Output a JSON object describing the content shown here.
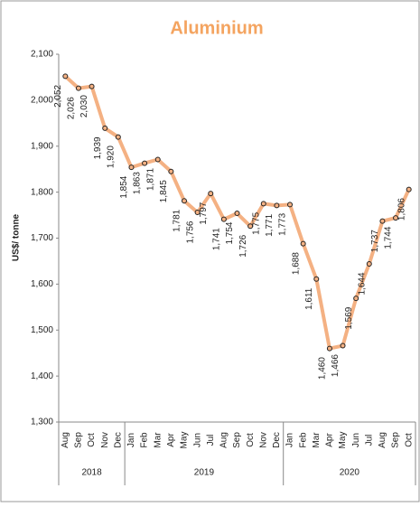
{
  "chart_data": {
    "type": "line",
    "title": "Aluminium",
    "y_label": "US$/ tonne",
    "categories": [
      "Aug",
      "Sep",
      "Oct",
      "Nov",
      "Dec",
      "Jan",
      "Feb",
      "Mar",
      "Apr",
      "May",
      "Jun",
      "Jul",
      "Aug",
      "Sep",
      "Oct",
      "Nov",
      "Dec",
      "Jan",
      "Feb",
      "Mar",
      "Apr",
      "May",
      "Jun",
      "Jul",
      "Aug",
      "Sep",
      "Oct"
    ],
    "x_groups": [
      "2018",
      "2018",
      "2018",
      "2018",
      "2018",
      "2019",
      "2019",
      "2019",
      "2019",
      "2019",
      "2019",
      "2019",
      "2019",
      "2019",
      "2019",
      "2019",
      "2019",
      "2020",
      "2020",
      "2020",
      "2020",
      "2020",
      "2020",
      "2020",
      "2020",
      "2020",
      "2020"
    ],
    "series": [
      {
        "name": "Aluminium",
        "color": "#f4b183",
        "values": [
          2052,
          2026,
          2030,
          1939,
          1920,
          1854,
          1863,
          1871,
          1845,
          1781,
          1756,
          1797,
          1741,
          1754,
          1726,
          1775,
          1771,
          1773,
          1688,
          1611,
          1460,
          1466,
          1569,
          1644,
          1737,
          1744,
          1806
        ],
        "value_labels": [
          "2,052",
          "2,026",
          "2,030",
          "1,939",
          "1,920",
          "1,854",
          "1,863",
          "1,871",
          "1,845",
          "1,781",
          "1,756",
          "1,797",
          "1,741",
          "1,754",
          "1,726",
          "1,775",
          "1,771",
          "1,773",
          "1,688",
          "1,611",
          "1,460",
          "1,466",
          "1,569",
          "1,644",
          "1,737",
          "1,744",
          "1,806"
        ]
      }
    ],
    "ylim": [
      1300,
      2100
    ],
    "yticks": [
      {
        "value": 1300,
        "label": "1,300"
      },
      {
        "value": 1400,
        "label": "1,400"
      },
      {
        "value": 1500,
        "label": "1,500"
      },
      {
        "value": 1600,
        "label": "1,600"
      },
      {
        "value": 1700,
        "label": "1,700"
      },
      {
        "value": 1800,
        "label": "1,800"
      },
      {
        "value": 1900,
        "label": "1,900"
      },
      {
        "value": 2000,
        "label": "2,000"
      },
      {
        "value": 2100,
        "label": "2,100"
      }
    ],
    "grid": false
  }
}
